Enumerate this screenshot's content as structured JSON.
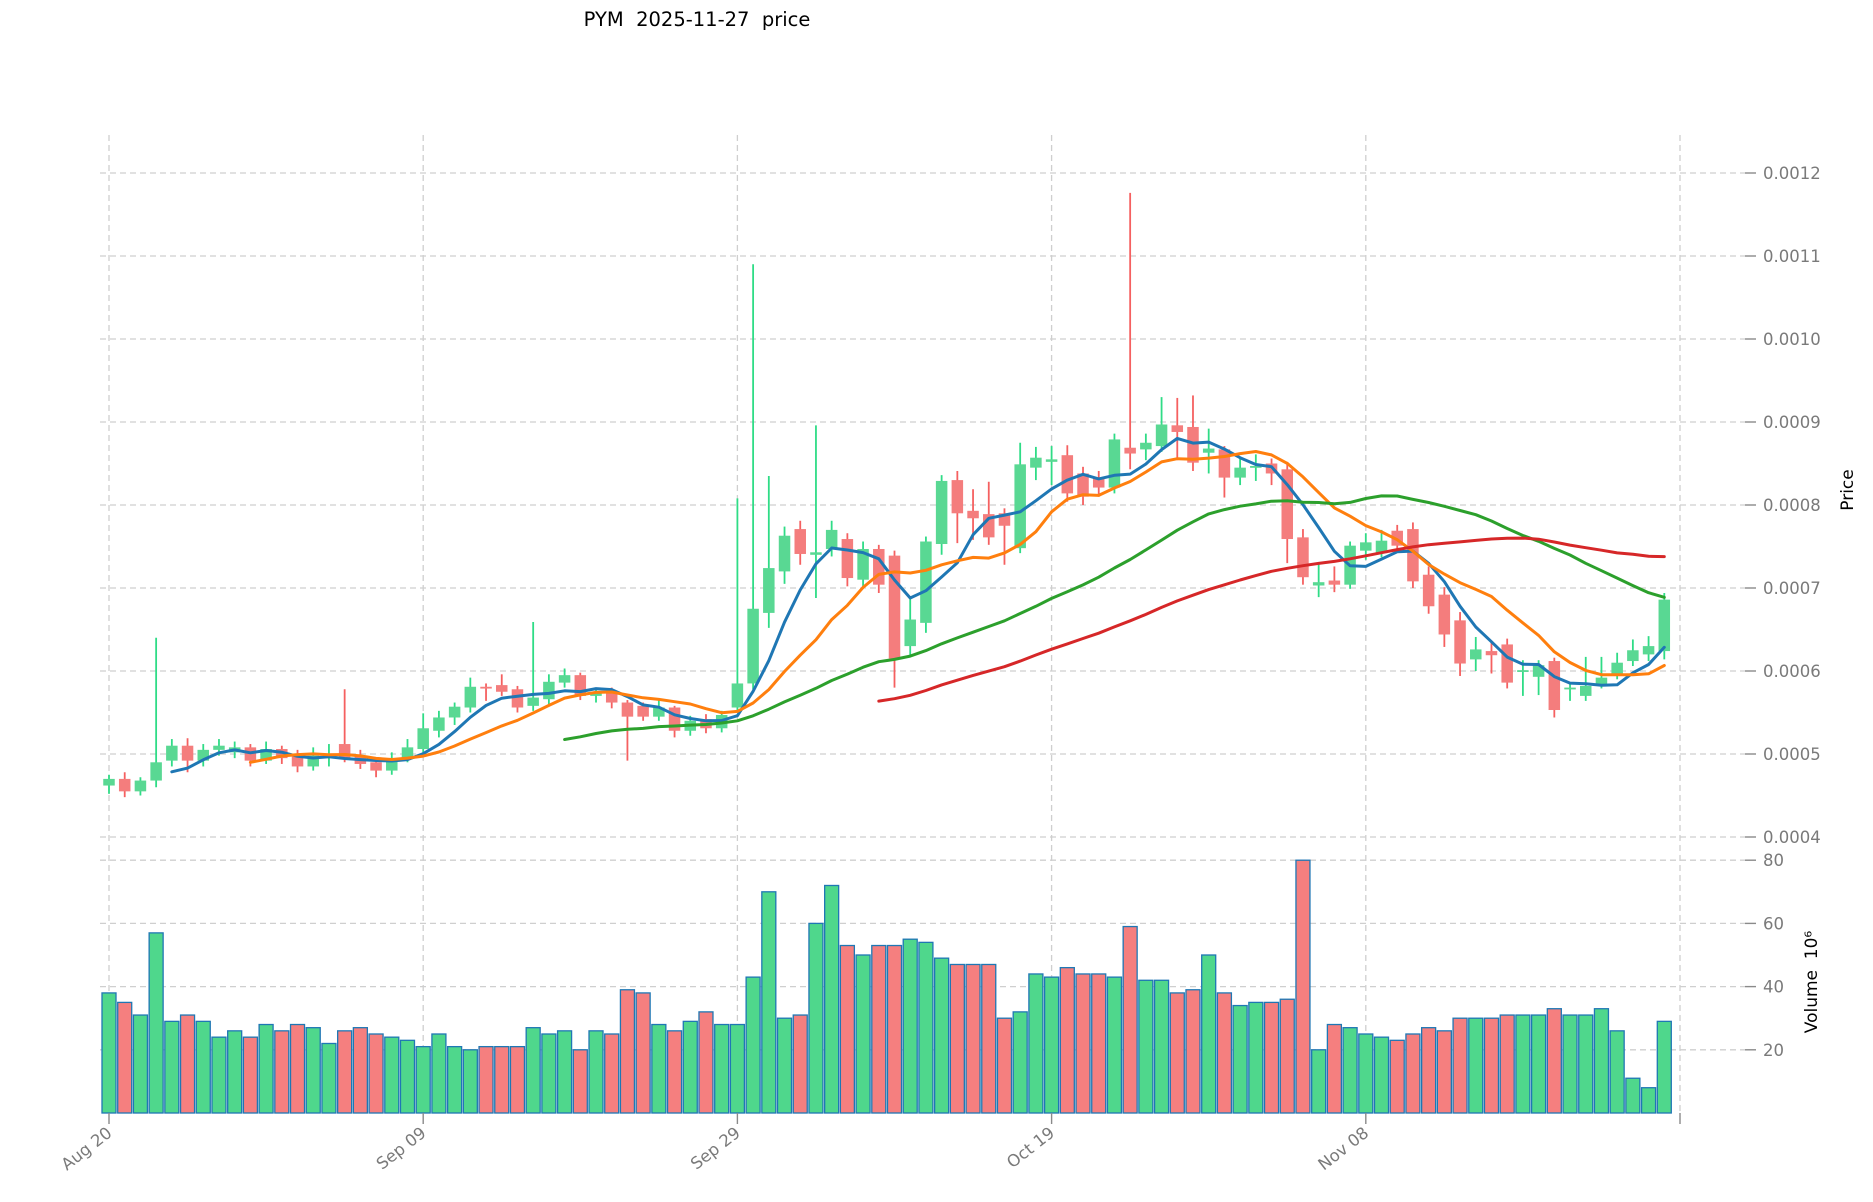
{
  "title": "PYM  2025-11-27  price",
  "price_axis": {
    "label": "Price",
    "tick_labels": [
      "0.0004",
      "0.0005",
      "0.0006",
      "0.0007",
      "0.0008",
      "0.0009",
      "0.0010",
      "0.0011",
      "0.0012"
    ]
  },
  "volume_axis": {
    "label": "Volume  10⁶",
    "tick_labels": [
      "20",
      "40",
      "60",
      "80"
    ]
  },
  "x_axis": {
    "tick_labels": [
      "Aug 20",
      "Sep 09",
      "Sep 29",
      "Oct 19",
      "Nov 08"
    ]
  },
  "colors": {
    "up_body": "#59D893",
    "up_wick": "#2FDC86",
    "down_body": "#F47D7D",
    "down_wick": "#F56060",
    "vol_up": "#4FD78C",
    "vol_down": "#F57F7F",
    "vol_edge": "#1F77B4",
    "ma_blue": "#1F77B4",
    "ma_orange": "#FF7F0E",
    "ma_green": "#2CA02C",
    "ma_red": "#D62728",
    "grid": "#CFCFCF",
    "tick_text": "#7A7A7A",
    "tick_mark": "#8A8A8A",
    "title_text": "#000000"
  },
  "chart_data": {
    "type": "candlestick",
    "title": "PYM  2025-11-27  price",
    "symbol": "PYM",
    "as_of_date": "2025-11-27",
    "x_start_label": "Aug 20",
    "x_tick_labels": [
      "Aug 20",
      "Sep 09",
      "Sep 29",
      "Oct 19",
      "Nov 08"
    ],
    "x_tick_interval_days": 20,
    "price_tick_values": [
      0.0004,
      0.0005,
      0.0006,
      0.0007,
      0.0008,
      0.0009,
      0.001,
      0.0011,
      0.0012
    ],
    "volume_tick_values": [
      20,
      40,
      60,
      80
    ],
    "price_scale": 0.0001,
    "volume_scale": 1000000,
    "ylim_price": [
      0.00039,
      0.00125
    ],
    "ylim_volume": [
      0,
      88
    ],
    "grid": true,
    "legend_position": "none",
    "moving_averages": [
      {
        "name": "MA5",
        "window": 5,
        "color": "#1F77B4"
      },
      {
        "name": "MA10",
        "window": 10,
        "color": "#FF7F0E"
      },
      {
        "name": "MA30",
        "window": 30,
        "color": "#2CA02C"
      },
      {
        "name": "MA50",
        "window": 50,
        "color": "#D62728"
      }
    ],
    "candles_format": [
      "open",
      "high",
      "low",
      "close",
      "volume"
    ],
    "candles": [
      [
        4.62,
        4.75,
        4.52,
        4.7,
        38
      ],
      [
        4.7,
        4.78,
        4.48,
        4.55,
        35
      ],
      [
        4.55,
        4.72,
        4.5,
        4.68,
        31
      ],
      [
        4.68,
        6.4,
        4.6,
        4.9,
        57
      ],
      [
        4.92,
        5.18,
        4.85,
        5.1,
        29
      ],
      [
        5.1,
        5.19,
        4.78,
        4.92,
        31
      ],
      [
        4.92,
        5.12,
        4.85,
        5.05,
        29
      ],
      [
        5.05,
        5.18,
        4.98,
        5.1,
        24
      ],
      [
        5.02,
        5.15,
        4.95,
        5.08,
        26
      ],
      [
        5.08,
        5.12,
        4.85,
        4.92,
        24
      ],
      [
        4.92,
        5.15,
        4.88,
        5.06,
        28
      ],
      [
        5.06,
        5.1,
        4.88,
        4.95,
        26
      ],
      [
        4.98,
        5.05,
        4.78,
        4.85,
        28
      ],
      [
        4.85,
        5.08,
        4.8,
        4.98,
        27
      ],
      [
        4.96,
        5.12,
        4.85,
        5.0,
        22
      ],
      [
        5.12,
        5.78,
        4.9,
        4.95,
        26
      ],
      [
        4.98,
        5.05,
        4.82,
        4.88,
        27
      ],
      [
        4.9,
        4.96,
        4.72,
        4.8,
        25
      ],
      [
        4.8,
        5.02,
        4.75,
        4.95,
        24
      ],
      [
        4.95,
        5.18,
        4.9,
        5.08,
        23
      ],
      [
        5.06,
        5.49,
        5.0,
        5.31,
        21
      ],
      [
        5.28,
        5.52,
        5.2,
        5.44,
        25
      ],
      [
        5.44,
        5.62,
        5.35,
        5.57,
        21
      ],
      [
        5.56,
        5.92,
        5.5,
        5.81,
        20
      ],
      [
        5.81,
        5.85,
        5.64,
        5.79,
        21
      ],
      [
        5.83,
        5.96,
        5.7,
        5.75,
        21
      ],
      [
        5.78,
        5.82,
        5.5,
        5.56,
        21
      ],
      [
        5.58,
        6.59,
        5.52,
        5.68,
        27
      ],
      [
        5.66,
        5.96,
        5.6,
        5.87,
        25
      ],
      [
        5.86,
        6.03,
        5.8,
        5.95,
        26
      ],
      [
        5.95,
        5.98,
        5.65,
        5.7,
        20
      ],
      [
        5.7,
        5.78,
        5.62,
        5.74,
        26
      ],
      [
        5.74,
        5.8,
        5.55,
        5.62,
        25
      ],
      [
        5.62,
        5.65,
        4.92,
        5.45,
        39
      ],
      [
        5.58,
        5.62,
        5.4,
        5.45,
        38
      ],
      [
        5.45,
        5.66,
        5.4,
        5.56,
        28
      ],
      [
        5.56,
        5.58,
        5.2,
        5.28,
        26
      ],
      [
        5.28,
        5.46,
        5.22,
        5.4,
        29
      ],
      [
        5.42,
        5.48,
        5.25,
        5.31,
        32
      ],
      [
        5.31,
        5.52,
        5.26,
        5.47,
        28
      ],
      [
        5.56,
        8.08,
        5.5,
        5.85,
        28
      ],
      [
        5.85,
        10.9,
        5.78,
        6.75,
        43
      ],
      [
        6.7,
        8.35,
        6.52,
        7.24,
        70
      ],
      [
        7.2,
        7.74,
        7.05,
        7.63,
        30
      ],
      [
        7.71,
        7.81,
        7.28,
        7.41,
        31
      ],
      [
        7.4,
        8.96,
        6.88,
        7.43,
        60
      ],
      [
        7.47,
        7.81,
        7.38,
        7.7,
        72
      ],
      [
        7.59,
        7.66,
        7.02,
        7.12,
        53
      ],
      [
        7.1,
        7.56,
        7.0,
        7.47,
        50
      ],
      [
        7.47,
        7.52,
        6.94,
        7.04,
        53
      ],
      [
        7.39,
        7.45,
        5.8,
        6.15,
        53
      ],
      [
        6.3,
        6.88,
        6.18,
        6.62,
        55
      ],
      [
        6.58,
        7.62,
        6.46,
        7.56,
        54
      ],
      [
        7.53,
        8.36,
        7.4,
        8.29,
        49
      ],
      [
        8.3,
        8.41,
        7.54,
        7.9,
        47
      ],
      [
        7.93,
        8.19,
        7.58,
        7.84,
        47
      ],
      [
        7.89,
        8.28,
        7.52,
        7.61,
        47
      ],
      [
        7.9,
        7.96,
        7.28,
        7.75,
        30
      ],
      [
        7.48,
        8.75,
        7.42,
        8.49,
        32
      ],
      [
        8.45,
        8.7,
        8.3,
        8.57,
        44
      ],
      [
        8.52,
        8.71,
        8.24,
        8.55,
        43
      ],
      [
        8.6,
        8.72,
        8.04,
        8.14,
        46
      ],
      [
        8.38,
        8.46,
        8.0,
        8.1,
        44
      ],
      [
        8.33,
        8.41,
        8.1,
        8.21,
        44
      ],
      [
        8.21,
        8.86,
        8.14,
        8.79,
        43
      ],
      [
        8.69,
        11.76,
        8.43,
        8.62,
        59
      ],
      [
        8.67,
        8.86,
        8.54,
        8.75,
        42
      ],
      [
        8.71,
        9.3,
        8.64,
        8.97,
        42
      ],
      [
        8.96,
        9.29,
        8.54,
        8.88,
        38
      ],
      [
        8.94,
        9.32,
        8.41,
        8.51,
        39
      ],
      [
        8.63,
        8.92,
        8.38,
        8.68,
        50
      ],
      [
        8.67,
        8.71,
        8.09,
        8.33,
        38
      ],
      [
        8.33,
        8.56,
        8.24,
        8.45,
        34
      ],
      [
        8.46,
        8.61,
        8.29,
        8.47,
        35
      ],
      [
        8.5,
        8.56,
        8.24,
        8.38,
        35
      ],
      [
        8.43,
        8.52,
        7.3,
        7.59,
        36
      ],
      [
        7.61,
        7.71,
        7.04,
        7.13,
        80
      ],
      [
        7.03,
        7.3,
        6.89,
        7.07,
        20
      ],
      [
        7.09,
        7.26,
        6.95,
        7.04,
        28
      ],
      [
        7.04,
        7.56,
        6.99,
        7.51,
        27
      ],
      [
        7.45,
        7.66,
        7.34,
        7.55,
        25
      ],
      [
        7.42,
        7.7,
        7.37,
        7.57,
        24
      ],
      [
        7.69,
        7.76,
        7.44,
        7.51,
        23
      ],
      [
        7.71,
        7.79,
        7.0,
        7.08,
        25
      ],
      [
        7.16,
        7.26,
        6.69,
        6.78,
        27
      ],
      [
        6.92,
        7.01,
        6.29,
        6.44,
        26
      ],
      [
        6.61,
        6.71,
        5.94,
        6.09,
        30
      ],
      [
        6.14,
        6.41,
        6.0,
        6.26,
        30
      ],
      [
        6.24,
        6.36,
        5.97,
        6.19,
        30
      ],
      [
        6.32,
        6.39,
        5.79,
        5.86,
        31
      ],
      [
        5.99,
        6.13,
        5.7,
        6.01,
        31
      ],
      [
        5.93,
        6.13,
        5.71,
        6.07,
        31
      ],
      [
        6.12,
        6.16,
        5.44,
        5.53,
        33
      ],
      [
        5.78,
        5.86,
        5.64,
        5.8,
        31
      ],
      [
        5.7,
        6.17,
        5.64,
        5.82,
        31
      ],
      [
        5.83,
        6.17,
        5.79,
        5.92,
        33
      ],
      [
        5.95,
        6.22,
        5.9,
        6.1,
        26
      ],
      [
        6.12,
        6.38,
        6.06,
        6.25,
        11
      ],
      [
        6.2,
        6.42,
        6.12,
        6.3,
        8
      ],
      [
        6.24,
        6.94,
        6.14,
        6.86,
        29
      ]
    ]
  }
}
